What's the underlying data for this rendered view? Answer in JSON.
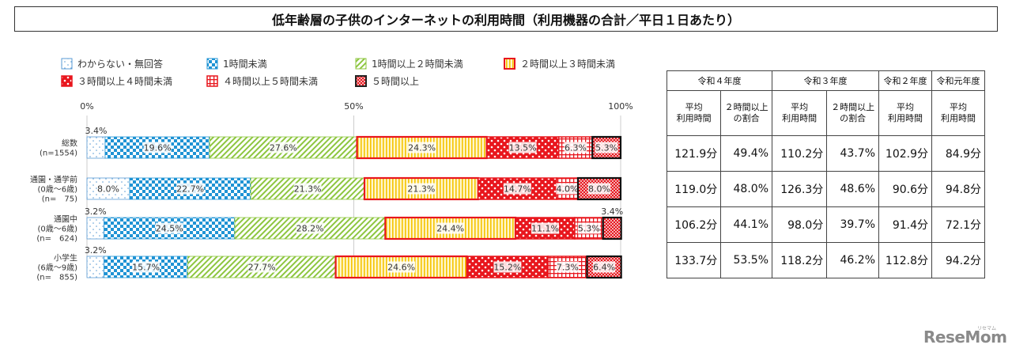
{
  "title": "低年齢層の子供のインターネットの利用時間（利用機器の合計／平日１日あたり）",
  "chart_data": {
    "type": "bar",
    "orientation": "horizontal",
    "stacked": true,
    "percent_axis_ticks": [
      "0%",
      "50%",
      "100%"
    ],
    "legend": [
      {
        "name": "わからない・無回答",
        "color": "#5aa0d6"
      },
      {
        "name": "1時間未満",
        "color": "#2c9bd6"
      },
      {
        "name": "1時間以上２時間未満",
        "color": "#8dc63f"
      },
      {
        "name": "２時間以上３時間未満",
        "color": "#f5c400"
      },
      {
        "name": "３時間以上４時間未満",
        "color": "#e8161d"
      },
      {
        "name": "４時間以上５時間未満",
        "color": "#e8161d"
      },
      {
        "name": "５時間以上",
        "color": "#e8161d"
      }
    ],
    "categories": [
      {
        "label1": "総数",
        "label2": "(n=1554)",
        "label3": ""
      },
      {
        "label1": "通園・通学前",
        "label2": "(0歳～6歳)",
        "label3": "(n=　75)"
      },
      {
        "label1": "通園中",
        "label2": "(0歳～6歳)",
        "label3": "(n=　624)"
      },
      {
        "label1": "小学生",
        "label2": "(6歳～9歳)",
        "label3": "(n=　855)"
      }
    ],
    "series_values": [
      [
        3.4,
        19.6,
        27.6,
        24.3,
        13.5,
        6.3,
        5.3
      ],
      [
        8.0,
        22.7,
        21.3,
        21.3,
        14.7,
        4.0,
        8.0
      ],
      [
        3.2,
        24.5,
        28.2,
        24.4,
        11.1,
        5.3,
        3.4
      ],
      [
        3.2,
        15.7,
        27.7,
        24.6,
        15.2,
        7.3,
        6.4
      ]
    ],
    "value_labels": [
      [
        "3.4%",
        "19.6%",
        "27.6%",
        "24.3%",
        "13.5%",
        "6.3%",
        "5.3%"
      ],
      [
        "8.0%",
        "22.7%",
        "21.3%",
        "21.3%",
        "14.7%",
        "4.0%",
        "8.0%"
      ],
      [
        "3.2%",
        "24.5%",
        "28.2%",
        "24.4%",
        "11.1%",
        "5.3%",
        "3.4%"
      ],
      [
        "3.2%",
        "15.7%",
        "27.7%",
        "24.6%",
        "15.2%",
        "7.3%",
        "6.4%"
      ]
    ]
  },
  "table": {
    "years": [
      "令和４年度",
      "令和３年度",
      "令和２年度",
      "令和元年度"
    ],
    "subheaders": [
      "平均\n利用時間",
      "２時間以上\nの割合",
      "平均\n利用時間",
      "２時間以上\nの割合",
      "平均\n利用時間",
      "平均\n利用時間"
    ],
    "rows": [
      [
        "121.9分",
        "49.4%",
        "110.2分",
        "43.7%",
        "102.9分",
        "84.9分"
      ],
      [
        "119.0分",
        "48.0%",
        "126.3分",
        "48.6%",
        "90.6分",
        "94.8分"
      ],
      [
        "106.2分",
        "44.1%",
        "98.0分",
        "39.7%",
        "91.4分",
        "72.1分"
      ],
      [
        "133.7分",
        "53.5%",
        "118.2分",
        "46.2%",
        "112.8分",
        "94.2分"
      ]
    ]
  },
  "logo": {
    "text": "ReseMom",
    "small": "リセマム"
  }
}
